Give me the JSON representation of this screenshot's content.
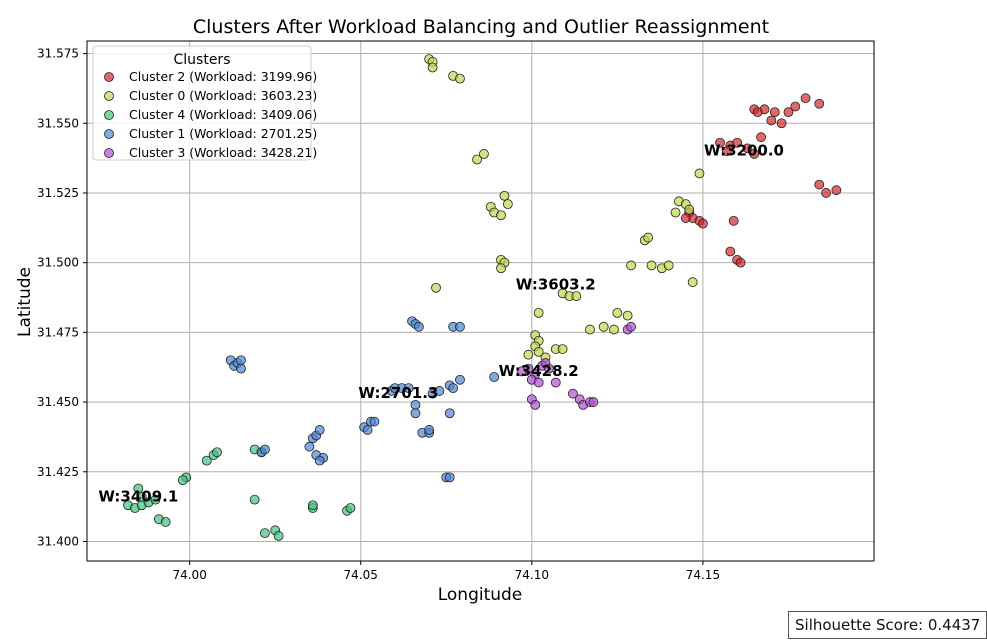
{
  "chart_data": {
    "type": "scatter",
    "title": "Clusters After Workload Balancing and Outlier Reassignment",
    "xlabel": "Longitude",
    "ylabel": "Latitude",
    "xlim": [
      73.97,
      74.2
    ],
    "ylim": [
      31.393,
      31.5795
    ],
    "xticks": [
      "74.00",
      "74.05",
      "74.10",
      "74.15"
    ],
    "yticks": [
      "31.400",
      "31.425",
      "31.450",
      "31.475",
      "31.500",
      "31.525",
      "31.550",
      "31.575"
    ],
    "grid": true,
    "legend": {
      "title": "Clusters",
      "position": "top-left"
    },
    "series": [
      {
        "name": "Cluster 2 (Workload: 3199.96)",
        "color": "#d62728",
        "centroid_label": "W:3200.0",
        "centroid": [
          74.162,
          31.54
        ],
        "points": [
          [
            74.165,
            31.555
          ],
          [
            74.168,
            31.555
          ],
          [
            74.166,
            31.554
          ],
          [
            74.171,
            31.554
          ],
          [
            74.175,
            31.554
          ],
          [
            74.177,
            31.556
          ],
          [
            74.17,
            31.551
          ],
          [
            74.173,
            31.55
          ],
          [
            74.18,
            31.559
          ],
          [
            74.184,
            31.557
          ],
          [
            74.167,
            31.545
          ],
          [
            74.163,
            31.541
          ],
          [
            74.158,
            31.542
          ],
          [
            74.16,
            31.543
          ],
          [
            74.155,
            31.543
          ],
          [
            74.157,
            31.54
          ],
          [
            74.165,
            31.539
          ],
          [
            74.146,
            31.518
          ],
          [
            74.147,
            31.516
          ],
          [
            74.149,
            31.515
          ],
          [
            74.145,
            31.516
          ],
          [
            74.15,
            31.514
          ],
          [
            74.159,
            31.515
          ],
          [
            74.158,
            31.504
          ],
          [
            74.16,
            31.501
          ],
          [
            74.161,
            31.5
          ],
          [
            74.184,
            31.528
          ],
          [
            74.186,
            31.525
          ],
          [
            74.189,
            31.526
          ]
        ]
      },
      {
        "name": "Cluster 0 (Workload: 3603.23)",
        "color": "#bcd84a",
        "centroid_label": "W:3603.2",
        "centroid": [
          74.107,
          31.492
        ],
        "points": [
          [
            74.07,
            31.573
          ],
          [
            74.071,
            31.572
          ],
          [
            74.071,
            31.57
          ],
          [
            74.077,
            31.567
          ],
          [
            74.079,
            31.566
          ],
          [
            74.084,
            31.537
          ],
          [
            74.086,
            31.539
          ],
          [
            74.092,
            31.524
          ],
          [
            74.093,
            31.521
          ],
          [
            74.088,
            31.52
          ],
          [
            74.089,
            31.518
          ],
          [
            74.091,
            31.517
          ],
          [
            74.091,
            31.501
          ],
          [
            74.092,
            31.5
          ],
          [
            74.091,
            31.498
          ],
          [
            74.072,
            31.491
          ],
          [
            74.109,
            31.489
          ],
          [
            74.111,
            31.488
          ],
          [
            74.113,
            31.488
          ],
          [
            74.102,
            31.482
          ],
          [
            74.117,
            31.476
          ],
          [
            74.121,
            31.477
          ],
          [
            74.124,
            31.476
          ],
          [
            74.125,
            31.482
          ],
          [
            74.128,
            31.481
          ],
          [
            74.101,
            31.474
          ],
          [
            74.102,
            31.472
          ],
          [
            74.101,
            31.47
          ],
          [
            74.102,
            31.468
          ],
          [
            74.099,
            31.467
          ],
          [
            74.104,
            31.466
          ],
          [
            74.107,
            31.469
          ],
          [
            74.109,
            31.469
          ],
          [
            74.133,
            31.508
          ],
          [
            74.134,
            31.509
          ],
          [
            74.135,
            31.499
          ],
          [
            74.138,
            31.498
          ],
          [
            74.14,
            31.499
          ],
          [
            74.129,
            31.499
          ],
          [
            74.142,
            31.518
          ],
          [
            74.143,
            31.522
          ],
          [
            74.145,
            31.521
          ],
          [
            74.146,
            31.519
          ],
          [
            74.149,
            31.532
          ],
          [
            74.147,
            31.493
          ]
        ]
      },
      {
        "name": "Cluster 4 (Workload: 3409.06)",
        "color": "#3fc47e",
        "centroid_label": "W:3409.1",
        "centroid": [
          73.985,
          31.416
        ],
        "points": [
          [
            73.982,
            31.413
          ],
          [
            73.984,
            31.412
          ],
          [
            73.986,
            31.413
          ],
          [
            73.985,
            31.419
          ],
          [
            73.986,
            31.416
          ],
          [
            73.988,
            31.414
          ],
          [
            73.99,
            31.415
          ],
          [
            73.991,
            31.408
          ],
          [
            73.993,
            31.407
          ],
          [
            73.999,
            31.423
          ],
          [
            73.998,
            31.422
          ],
          [
            74.005,
            31.429
          ],
          [
            74.007,
            31.431
          ],
          [
            74.008,
            31.432
          ],
          [
            74.019,
            31.433
          ],
          [
            74.021,
            31.432
          ],
          [
            74.019,
            31.415
          ],
          [
            74.022,
            31.403
          ],
          [
            74.025,
            31.404
          ],
          [
            74.026,
            31.402
          ],
          [
            74.036,
            31.412
          ],
          [
            74.036,
            31.413
          ],
          [
            74.046,
            31.411
          ],
          [
            74.047,
            31.412
          ]
        ]
      },
      {
        "name": "Cluster 1 (Workload: 2701.25)",
        "color": "#4a86d6",
        "centroid_label": "W:2701.3",
        "centroid": [
          74.061,
          31.453
        ],
        "points": [
          [
            74.012,
            31.465
          ],
          [
            74.013,
            31.463
          ],
          [
            74.014,
            31.464
          ],
          [
            74.015,
            31.465
          ],
          [
            74.015,
            31.462
          ],
          [
            74.021,
            31.432
          ],
          [
            74.022,
            31.433
          ],
          [
            74.035,
            31.434
          ],
          [
            74.036,
            31.437
          ],
          [
            74.037,
            31.438
          ],
          [
            74.038,
            31.44
          ],
          [
            74.037,
            31.431
          ],
          [
            74.039,
            31.43
          ],
          [
            74.038,
            31.429
          ],
          [
            74.051,
            31.441
          ],
          [
            74.052,
            31.44
          ],
          [
            74.053,
            31.443
          ],
          [
            74.054,
            31.443
          ],
          [
            74.059,
            31.454
          ],
          [
            74.06,
            31.455
          ],
          [
            74.062,
            31.455
          ],
          [
            74.064,
            31.455
          ],
          [
            74.066,
            31.449
          ],
          [
            74.066,
            31.446
          ],
          [
            74.068,
            31.439
          ],
          [
            74.07,
            31.439
          ],
          [
            74.07,
            31.44
          ],
          [
            74.071,
            31.453
          ],
          [
            74.073,
            31.454
          ],
          [
            74.076,
            31.456
          ],
          [
            74.077,
            31.455
          ],
          [
            74.079,
            31.458
          ],
          [
            74.076,
            31.446
          ],
          [
            74.065,
            31.479
          ],
          [
            74.066,
            31.478
          ],
          [
            74.067,
            31.477
          ],
          [
            74.077,
            31.477
          ],
          [
            74.079,
            31.477
          ],
          [
            74.075,
            31.423
          ],
          [
            74.076,
            31.423
          ],
          [
            74.089,
            31.459
          ]
        ]
      },
      {
        "name": "Cluster 3 (Workload: 3428.21)",
        "color": "#b04ed6",
        "centroid_label": "W:3428.2",
        "centroid": [
          74.102,
          31.461
        ],
        "points": [
          [
            74.097,
            31.461
          ],
          [
            74.099,
            31.462
          ],
          [
            74.101,
            31.46
          ],
          [
            74.103,
            31.463
          ],
          [
            74.104,
            31.464
          ],
          [
            74.105,
            31.462
          ],
          [
            74.1,
            31.458
          ],
          [
            74.102,
            31.457
          ],
          [
            74.107,
            31.457
          ],
          [
            74.1,
            31.451
          ],
          [
            74.101,
            31.449
          ],
          [
            74.112,
            31.453
          ],
          [
            74.114,
            31.451
          ],
          [
            74.115,
            31.449
          ],
          [
            74.117,
            31.45
          ],
          [
            74.118,
            31.45
          ],
          [
            74.128,
            31.476
          ],
          [
            74.129,
            31.477
          ]
        ]
      }
    ],
    "silhouette_label": "Silhouette Score: 0.4437"
  }
}
